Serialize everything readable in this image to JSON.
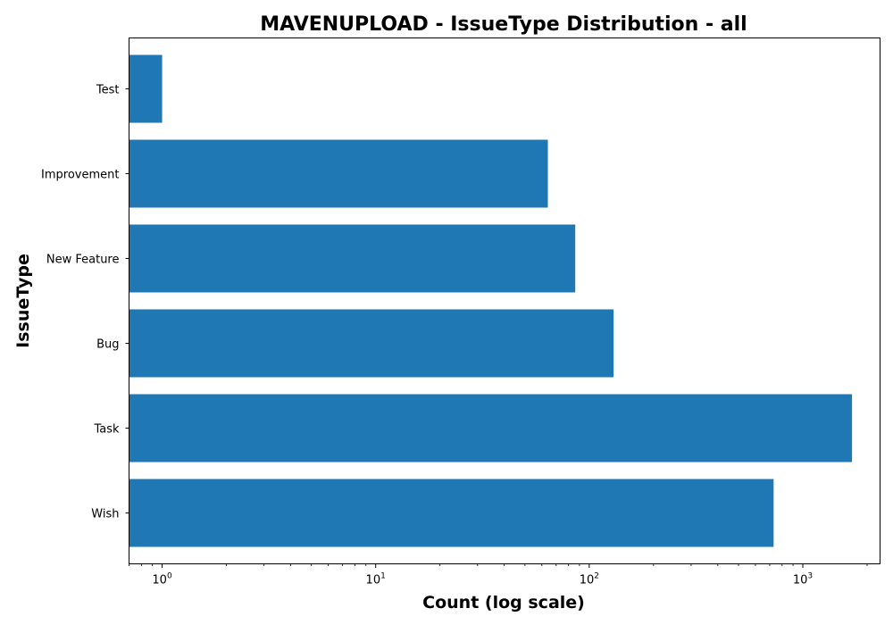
{
  "chart_data": {
    "type": "bar",
    "orientation": "horizontal",
    "title": "MAVENUPLOAD - IssueType Distribution - all",
    "xlabel": "Count (log scale)",
    "ylabel": "IssueType",
    "x_scale": "log",
    "xlim": [
      0.7,
      2300
    ],
    "x_ticks": [
      {
        "base": "10",
        "exp": "0",
        "value": 1
      },
      {
        "base": "10",
        "exp": "1",
        "value": 10
      },
      {
        "base": "10",
        "exp": "2",
        "value": 100
      },
      {
        "base": "10",
        "exp": "3",
        "value": 1000
      }
    ],
    "categories": [
      "Wish",
      "Task",
      "Bug",
      "New Feature",
      "Improvement",
      "Test"
    ],
    "values": [
      730,
      1700,
      130,
      86,
      64,
      1
    ],
    "bar_color": "#1f77b4",
    "grid": false,
    "legend": "none"
  }
}
